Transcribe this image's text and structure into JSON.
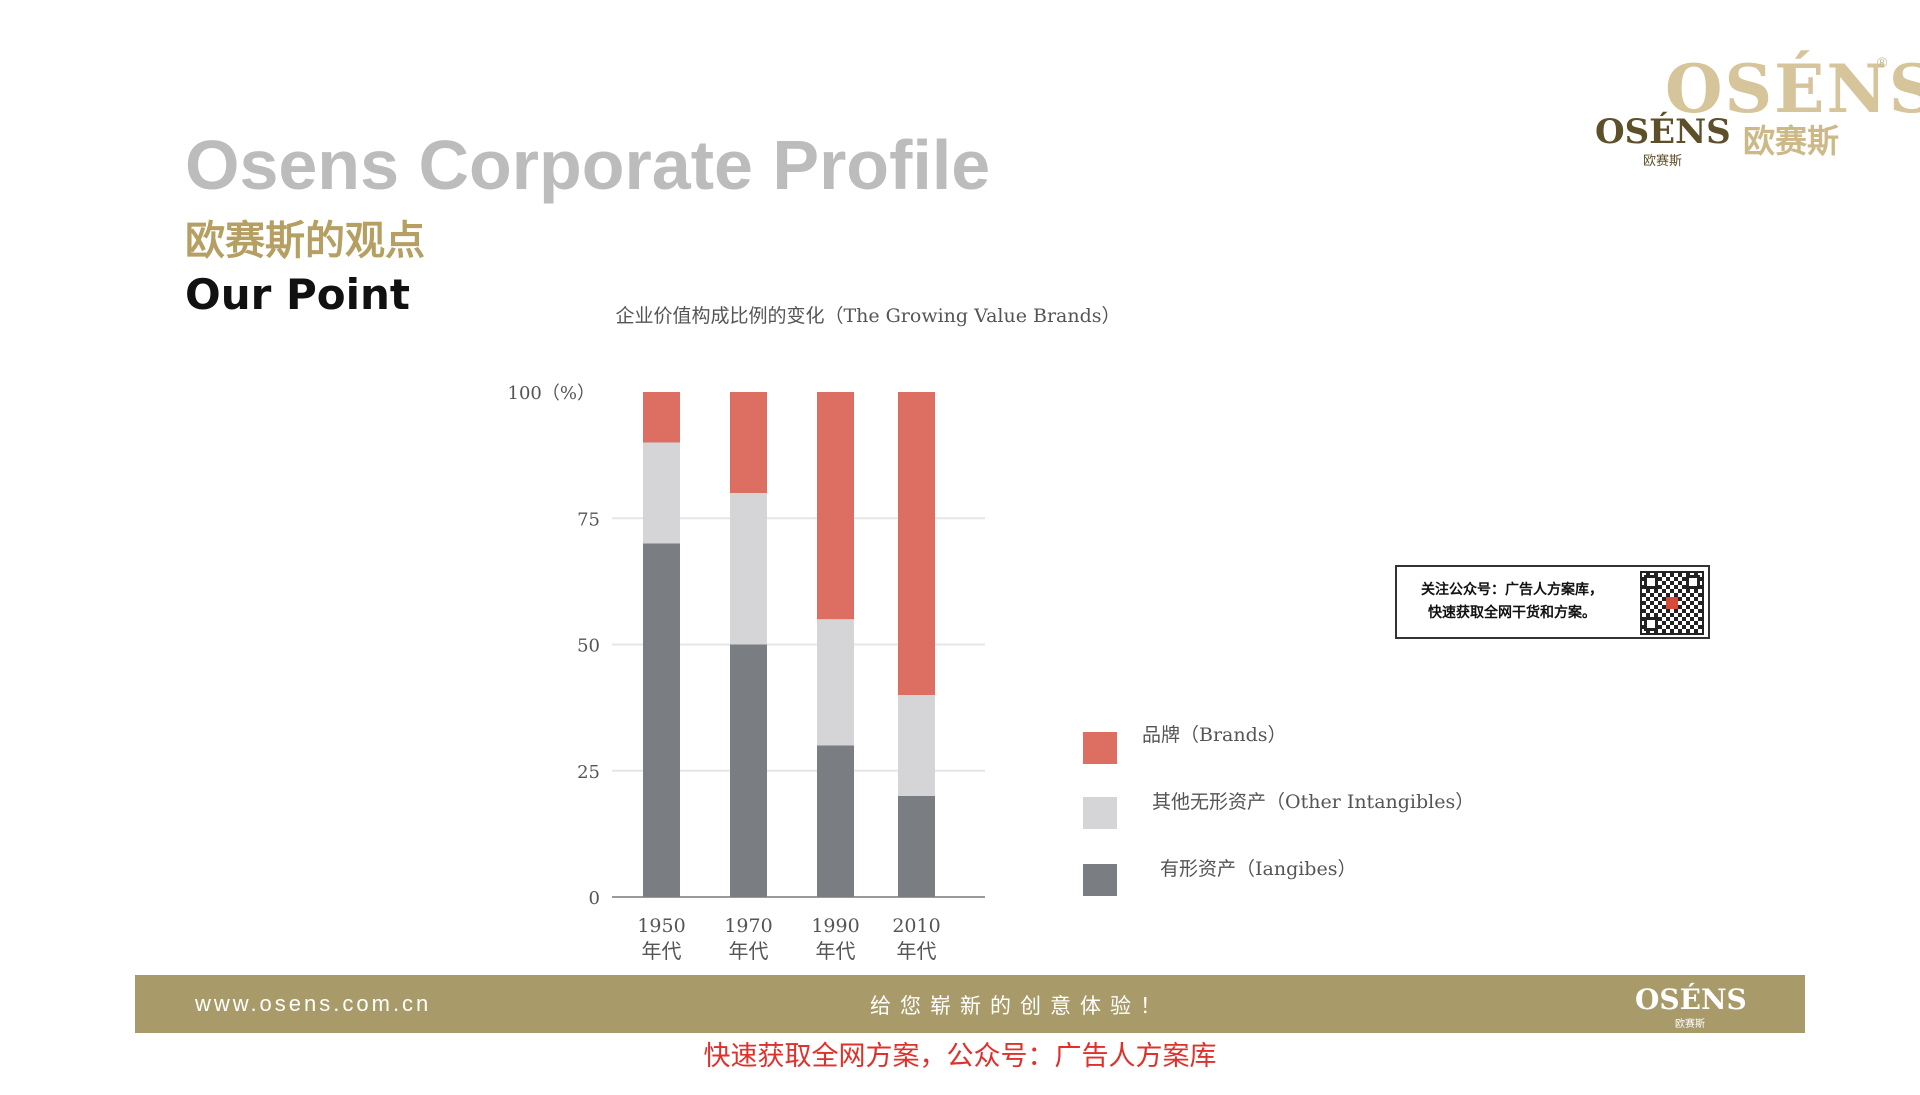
{
  "header": {
    "title_en": "Osens Corporate Profile",
    "title_cn": "欧赛斯的观点",
    "subtitle": "Our Point"
  },
  "logo": {
    "wordmark_big": "OSÉNS",
    "registered": "®",
    "wordmark_small": "OSÉNS",
    "cn_big": "欧赛斯",
    "cn_small": "欧赛斯"
  },
  "chart_data": {
    "type": "bar",
    "stacked": true,
    "title": "企业价值构成比例的变化（The Growing Value Brands）",
    "categories": [
      "1950\n年代",
      "1970\n年代",
      "1990\n年代",
      "2010\n年代"
    ],
    "category_labels": [
      {
        "year": "1950",
        "suffix": "年代"
      },
      {
        "year": "1970",
        "suffix": "年代"
      },
      {
        "year": "1990",
        "suffix": "年代"
      },
      {
        "year": "2010",
        "suffix": "年代"
      }
    ],
    "series": [
      {
        "name": "有形资产（Iangibes）",
        "color": "#7a7d81",
        "values": [
          70,
          50,
          30,
          20
        ]
      },
      {
        "name": "其他无形资产（Other Intangibles）",
        "color": "#d5d5d8",
        "values": [
          20,
          30,
          25,
          20
        ]
      },
      {
        "name": "品牌（Brands）",
        "color": "#dc6f62",
        "values": [
          10,
          20,
          45,
          60
        ]
      }
    ],
    "yticks": [
      {
        "value": 0,
        "label": "0"
      },
      {
        "value": 25,
        "label": "25"
      },
      {
        "value": 50,
        "label": "50"
      },
      {
        "value": 75,
        "label": "75"
      },
      {
        "value": 100,
        "label": "100（%）"
      }
    ],
    "ylim": [
      0,
      100
    ],
    "grid": true,
    "legend_position": "right",
    "legend_order": [
      2,
      1,
      0
    ]
  },
  "notice": {
    "line1": "关注公众号：广告人方案库，",
    "line2": "快速获取全网干货和方案。"
  },
  "footer": {
    "url": "www.osens.com.cn",
    "slogan": "给您崭新的创意体验！",
    "logo": "OSÉNS",
    "logo_cn": "欧赛斯"
  },
  "watermark": "快速获取全网方案，公众号：广告人方案库"
}
